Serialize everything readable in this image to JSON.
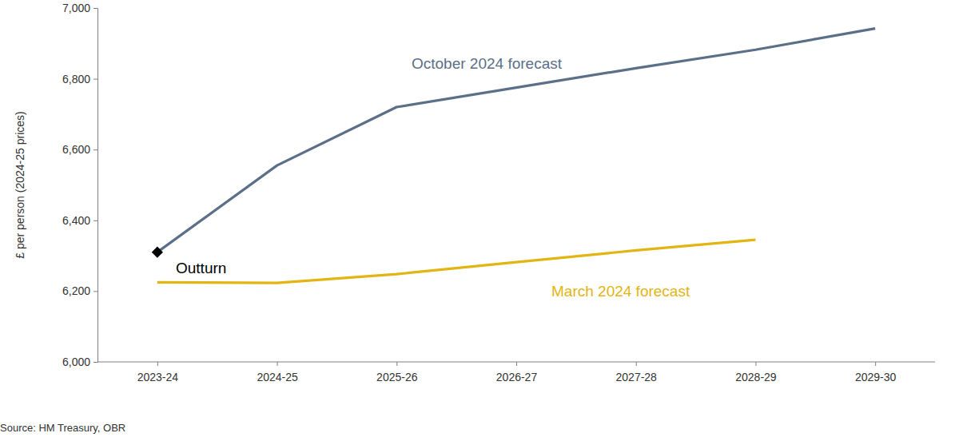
{
  "chart_data": {
    "type": "line",
    "y_label": "£ per person (2024-25 prices)",
    "source": "Source: HM Treasury, OBR",
    "categories": [
      "2023-24",
      "2024-25",
      "2025-26",
      "2026-27",
      "2027-28",
      "2028-29",
      "2029-30"
    ],
    "series": [
      {
        "name": "October 2024 forecast",
        "color": "#5b6f88",
        "values": [
          6310,
          6555,
          6720,
          6775,
          6830,
          6882,
          6942
        ]
      },
      {
        "name": "March 2024 forecast",
        "color": "#e3b512",
        "values": [
          6225,
          6223,
          6248,
          6282,
          6315,
          6345,
          null
        ]
      },
      {
        "name": "Outturn",
        "color": "#000000",
        "type": "scatter",
        "marker": "diamond",
        "values": [
          6310,
          null,
          null,
          null,
          null,
          null,
          null
        ]
      }
    ],
    "ylim": [
      6000,
      7000
    ],
    "yticks": [
      {
        "value": 6000,
        "label": "6,000"
      },
      {
        "value": 6200,
        "label": "6,200"
      },
      {
        "value": 6400,
        "label": "6,400"
      },
      {
        "value": 6600,
        "label": "6,600"
      },
      {
        "value": 6800,
        "label": "6,800"
      },
      {
        "value": 7000,
        "label": "7,000"
      }
    ],
    "grid": false
  }
}
